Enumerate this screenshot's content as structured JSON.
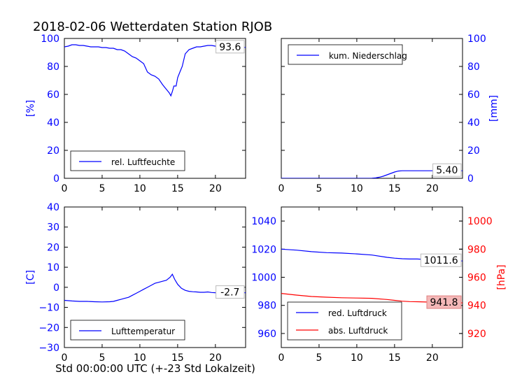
{
  "figure": {
    "title": "2018-02-06 Wetterdaten Station RJOB",
    "xlabel": "Std 00:00:00 UTC (+-23 Std Lokalzeit)"
  },
  "colors": {
    "blue": "#0000ff",
    "red": "#ff0000",
    "axis": "#000000",
    "last_red_bg": "#f4b8b8"
  },
  "chart_data": [
    {
      "id": "humidity",
      "type": "line",
      "xlim": [
        0,
        24
      ],
      "ylim": [
        0,
        100
      ],
      "xticks": [
        0,
        5,
        10,
        15,
        20
      ],
      "yticks": [
        0,
        20,
        40,
        60,
        80,
        100
      ],
      "ylabel": "[%]",
      "ylabel_color": "#0000ff",
      "last_value_label": "93.6",
      "legend": {
        "placement": "lower-left"
      },
      "series": [
        {
          "name": "rel. Luftfeuchte",
          "color": "#0000ff",
          "x": [
            0,
            0.5,
            1,
            1.5,
            2,
            2.5,
            3,
            3.5,
            4,
            4.5,
            5,
            5.5,
            6,
            6.5,
            7,
            7.5,
            8,
            8.5,
            9,
            9.5,
            10,
            10.5,
            11,
            11.5,
            12,
            12.5,
            13,
            13.3,
            13.6,
            13.9,
            14.1,
            14.3,
            14.5,
            14.8,
            15,
            15.3,
            15.6,
            16,
            16.5,
            17,
            17.5,
            18,
            18.5,
            19,
            19.5,
            20,
            20.5,
            21,
            21.5,
            22,
            22.5,
            23,
            23.5,
            24
          ],
          "y": [
            94,
            94.5,
            95.5,
            95.5,
            95,
            95,
            94.5,
            94,
            94,
            94,
            93.5,
            93.5,
            93,
            93,
            92,
            92,
            91,
            89,
            87,
            86,
            84,
            82,
            76,
            74,
            73,
            71,
            67,
            65,
            63,
            61,
            59,
            62,
            66,
            66,
            72,
            76,
            80,
            89,
            92,
            93,
            94,
            94,
            94.5,
            95,
            95,
            94.5,
            93,
            92,
            93,
            93.5,
            93.5,
            94,
            93.6,
            93.6
          ]
        }
      ]
    },
    {
      "id": "precipitation",
      "type": "line",
      "xlim": [
        0,
        24
      ],
      "ylim": [
        0,
        100
      ],
      "xticks": [
        0,
        5,
        10,
        15,
        20
      ],
      "yticks": [
        0,
        20,
        40,
        60,
        80,
        100
      ],
      "y_axis_side": "right",
      "ylabel": "[mm]",
      "ylabel_color": "#0000ff",
      "last_value_label": "5.40",
      "legend": {
        "placement": "top-left"
      },
      "series": [
        {
          "name": "kum. Niederschlag",
          "color": "#0000ff",
          "x": [
            0,
            11.5,
            12,
            12.5,
            13,
            13.5,
            14,
            14.5,
            15,
            15.5,
            16,
            17,
            18,
            19,
            20,
            21,
            22,
            23,
            24
          ],
          "y": [
            0,
            0,
            0.1,
            0.3,
            0.8,
            1.5,
            2.5,
            3.5,
            4.5,
            5.2,
            5.4,
            5.4,
            5.4,
            5.4,
            5.4,
            5.4,
            5.4,
            5.4,
            5.4
          ]
        }
      ]
    },
    {
      "id": "temperature",
      "type": "line",
      "xlim": [
        0,
        24
      ],
      "ylim": [
        -30,
        40
      ],
      "xticks": [
        0,
        5,
        10,
        15,
        20
      ],
      "yticks": [
        -30,
        -20,
        -10,
        0,
        10,
        20,
        30,
        40
      ],
      "ylabel": "[C]",
      "ylabel_color": "#0000ff",
      "last_value_label": "-2.7",
      "legend": {
        "placement": "lower-left"
      },
      "series": [
        {
          "name": "Lufttemperatur",
          "color": "#0000ff",
          "x": [
            0,
            1,
            2,
            3,
            4,
            5,
            6,
            6.5,
            7,
            7.5,
            8,
            8.5,
            9,
            9.5,
            10,
            10.5,
            11,
            11.5,
            12,
            12.5,
            13,
            13.5,
            14,
            14.3,
            14.6,
            15,
            15.5,
            16,
            16.5,
            17,
            17.5,
            18,
            18.5,
            19,
            19.5,
            20,
            20.5,
            21,
            22,
            23,
            24
          ],
          "y": [
            -6.5,
            -6.8,
            -7,
            -7,
            -7.2,
            -7.3,
            -7.2,
            -7,
            -6.5,
            -6,
            -5.5,
            -5,
            -4,
            -3,
            -2,
            -1,
            0,
            1,
            2,
            2.5,
            3,
            3.5,
            5,
            6.5,
            4,
            1.5,
            -0.5,
            -1.5,
            -2,
            -2.2,
            -2.3,
            -2.5,
            -2.5,
            -2.3,
            -2.6,
            -2.7,
            -3.2,
            -2.5,
            -2.5,
            -2.6,
            -2.7
          ]
        }
      ]
    },
    {
      "id": "pressure",
      "type": "line",
      "xlim": [
        0,
        24
      ],
      "ylim": [
        950,
        1050
      ],
      "xticks": [
        0,
        5,
        10,
        15,
        20
      ],
      "yticks": [
        960,
        980,
        1000,
        1020,
        1040
      ],
      "ylim_right": [
        910,
        1010
      ],
      "yticks_right": [
        920,
        940,
        960,
        980,
        1000
      ],
      "ylabel_right": "[hPa]",
      "ylabel_right_color": "#ff0000",
      "last_value_labels": [
        "1011.6",
        "941.8"
      ],
      "legend": {
        "placement": "lower-left"
      },
      "series": [
        {
          "name": "red. Luftdruck",
          "axis": "left",
          "color": "#0000ff",
          "x": [
            0,
            2,
            4,
            6,
            8,
            10,
            12,
            14,
            15,
            16,
            17,
            18,
            20,
            22,
            24
          ],
          "y": [
            1020,
            1019.3,
            1018.2,
            1017.5,
            1017.2,
            1016.6,
            1015.8,
            1014.2,
            1013.6,
            1013.2,
            1013.0,
            1013.0,
            1012.4,
            1011.9,
            1011.6
          ]
        },
        {
          "name": "abs. Luftdruck",
          "axis": "right",
          "color": "#ff0000",
          "x": [
            0,
            2,
            4,
            6,
            8,
            10,
            12,
            14,
            15,
            16,
            17,
            18,
            20,
            22,
            24
          ],
          "y": [
            948.5,
            947.3,
            946.3,
            945.8,
            945.4,
            945.2,
            945.0,
            944.2,
            943.6,
            943.0,
            942.7,
            942.6,
            942.3,
            942.0,
            941.8
          ]
        }
      ]
    }
  ]
}
